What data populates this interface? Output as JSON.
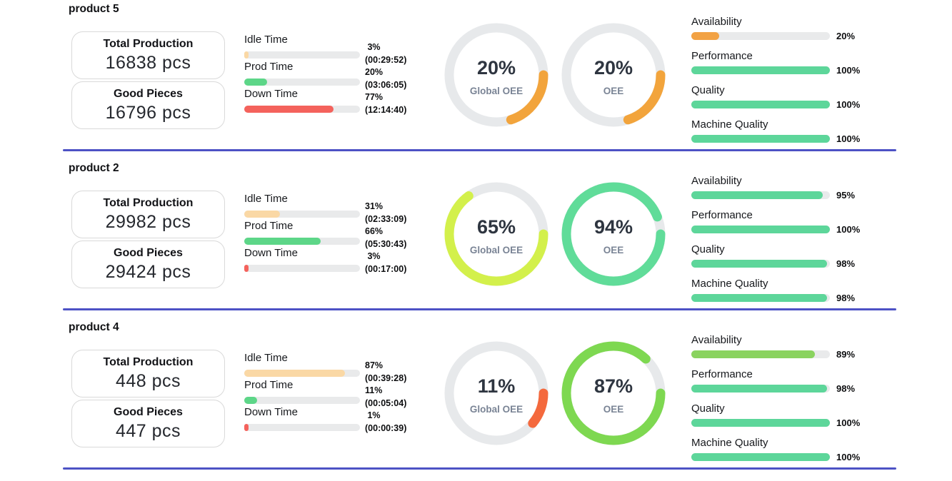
{
  "ui": {
    "divider_color": "#4d52c5",
    "track_color": "#e9eaeb",
    "gauge_track_color": "#e7e9eb"
  },
  "chart_data": [
    {
      "type": "bar",
      "title": "product 5 time distribution",
      "categories": [
        "Idle Time",
        "Prod Time",
        "Down Time"
      ],
      "values": [
        3,
        20,
        77
      ],
      "labels": [
        "(00:29:52)",
        "(03:06:05)",
        "(12:14:40)"
      ],
      "ylim": [
        0,
        100
      ]
    },
    {
      "type": "bar",
      "title": "product 2 time distribution",
      "categories": [
        "Idle Time",
        "Prod Time",
        "Down Time"
      ],
      "values": [
        31,
        66,
        3
      ],
      "labels": [
        "(02:33:09)",
        "(05:30:43)",
        "(00:17:00)"
      ],
      "ylim": [
        0,
        100
      ]
    },
    {
      "type": "bar",
      "title": "product 4 time distribution",
      "categories": [
        "Idle Time",
        "Prod Time",
        "Down Time"
      ],
      "values": [
        87,
        11,
        1
      ],
      "labels": [
        "(00:39:28)",
        "(00:05:04)",
        "(00:00:39)"
      ],
      "ylim": [
        0,
        100
      ]
    }
  ],
  "products": [
    {
      "name": "product 5",
      "cards": [
        {
          "label": "Total Production",
          "value": "16838 pcs"
        },
        {
          "label": "Good Pieces",
          "value": "16796 pcs"
        }
      ],
      "time_bars": [
        {
          "label": "Idle Time",
          "pct": 3,
          "pct_text": " 3%",
          "time_text": "(00:29:52)",
          "color": "#fad8a5"
        },
        {
          "label": "Prod Time",
          "pct": 20,
          "pct_text": "20%",
          "time_text": "(03:06:05)",
          "color": "#5dd688"
        },
        {
          "label": "Down Time",
          "pct": 77,
          "pct_text": "77%",
          "time_text": "(12:14:40)",
          "color": "#f4625c"
        }
      ],
      "gauges": [
        {
          "pct": 20,
          "value_text": "20%",
          "label": "Global OEE",
          "color": "#f2a43c"
        },
        {
          "pct": 20,
          "value_text": "20%",
          "label": "OEE",
          "color": "#f2a43c"
        }
      ],
      "kpis": [
        {
          "label": "Availability",
          "pct": 20,
          "pct_text": "20%",
          "color": "#f2a244"
        },
        {
          "label": "Performance",
          "pct": 100,
          "pct_text": "100%",
          "color": "#5dd69a"
        },
        {
          "label": "Quality",
          "pct": 100,
          "pct_text": "100%",
          "color": "#5dd69a"
        },
        {
          "label": "Machine Quality",
          "pct": 100,
          "pct_text": "100%",
          "color": "#5dd69a"
        }
      ]
    },
    {
      "name": "product 2",
      "cards": [
        {
          "label": "Total Production",
          "value": "29982 pcs"
        },
        {
          "label": "Good Pieces",
          "value": "29424 pcs"
        }
      ],
      "time_bars": [
        {
          "label": "Idle Time",
          "pct": 31,
          "pct_text": "31%",
          "time_text": "(02:33:09)",
          "color": "#fad8a5"
        },
        {
          "label": "Prod Time",
          "pct": 66,
          "pct_text": "66%",
          "time_text": "(05:30:43)",
          "color": "#5dd688"
        },
        {
          "label": "Down Time",
          "pct": 3,
          "pct_text": " 3%",
          "time_text": "(00:17:00)",
          "color": "#f4625c"
        }
      ],
      "gauges": [
        {
          "pct": 65,
          "value_text": "65%",
          "label": "Global OEE",
          "color": "#d3f04b"
        },
        {
          "pct": 94,
          "value_text": "94%",
          "label": "OEE",
          "color": "#60dc99"
        }
      ],
      "kpis": [
        {
          "label": "Availability",
          "pct": 95,
          "pct_text": "95%",
          "color": "#5dd69a"
        },
        {
          "label": "Performance",
          "pct": 100,
          "pct_text": "100%",
          "color": "#5dd69a"
        },
        {
          "label": "Quality",
          "pct": 98,
          "pct_text": "98%",
          "color": "#5dd69a"
        },
        {
          "label": "Machine Quality",
          "pct": 98,
          "pct_text": "98%",
          "color": "#5dd69a"
        }
      ]
    },
    {
      "name": "product 4",
      "cards": [
        {
          "label": "Total Production",
          "value": "448 pcs"
        },
        {
          "label": "Good Pieces",
          "value": "447 pcs"
        }
      ],
      "time_bars": [
        {
          "label": "Idle Time",
          "pct": 87,
          "pct_text": "87%",
          "time_text": "(00:39:28)",
          "color": "#fad8a5"
        },
        {
          "label": "Prod Time",
          "pct": 11,
          "pct_text": "11%",
          "time_text": "(00:05:04)",
          "color": "#5dd688"
        },
        {
          "label": "Down Time",
          "pct": 1,
          "pct_text": " 1%",
          "time_text": "(00:00:39)",
          "color": "#f4625c"
        }
      ],
      "gauges": [
        {
          "pct": 11,
          "value_text": "11%",
          "label": "Global OEE",
          "color": "#f4693d"
        },
        {
          "pct": 87,
          "value_text": "87%",
          "label": "OEE",
          "color": "#7ed851"
        }
      ],
      "kpis": [
        {
          "label": "Availability",
          "pct": 89,
          "pct_text": "89%",
          "color": "#8ad35f"
        },
        {
          "label": "Performance",
          "pct": 98,
          "pct_text": "98%",
          "color": "#5dd69a"
        },
        {
          "label": "Quality",
          "pct": 100,
          "pct_text": "100%",
          "color": "#5dd69a"
        },
        {
          "label": "Machine Quality",
          "pct": 100,
          "pct_text": "100%",
          "color": "#5dd69a"
        }
      ]
    }
  ]
}
